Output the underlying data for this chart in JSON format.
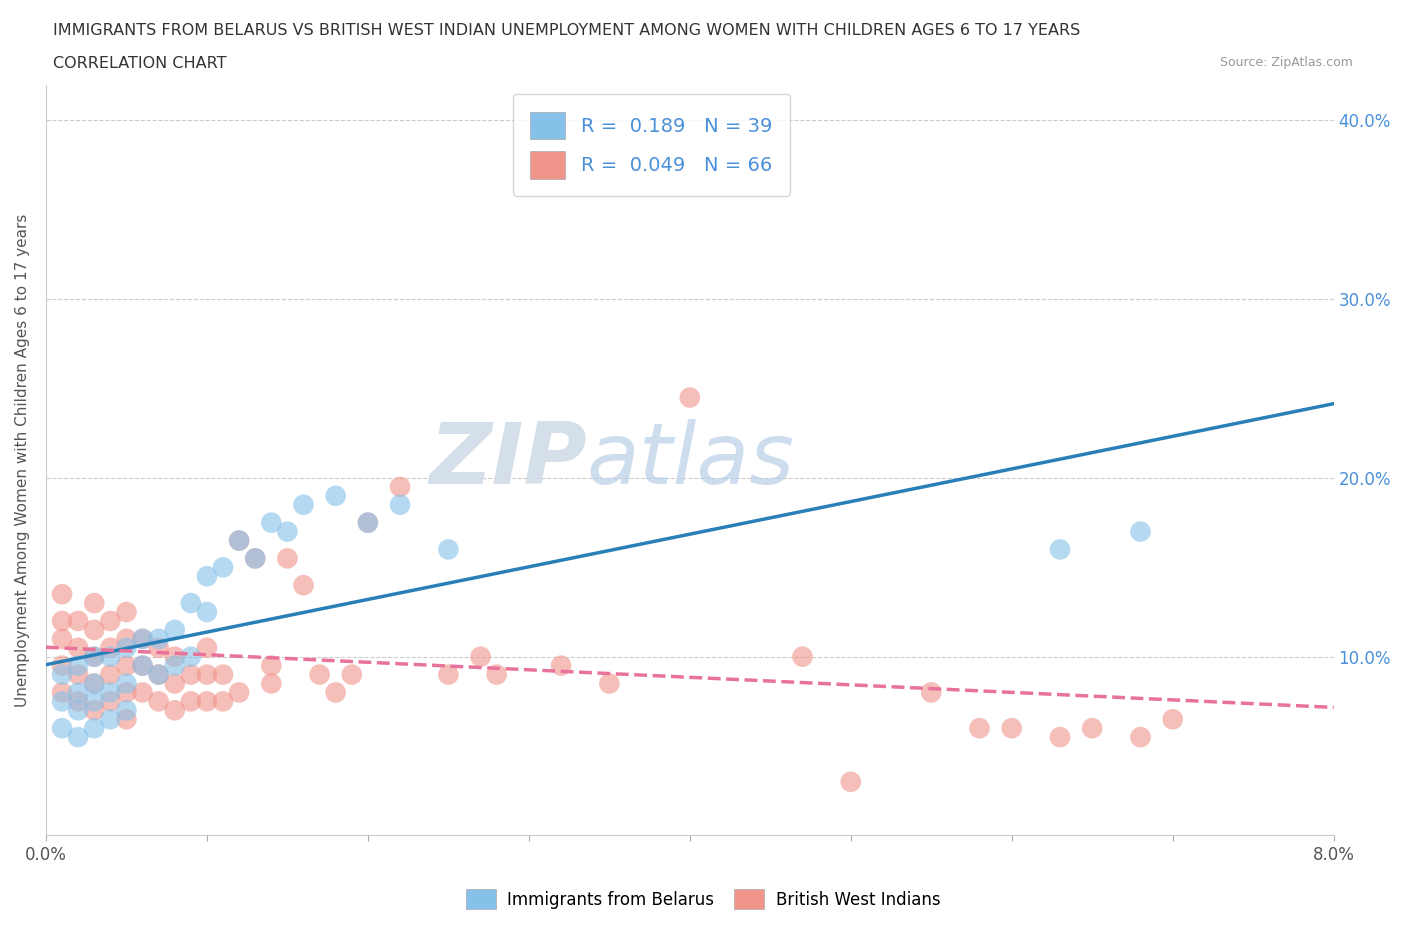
{
  "title_line1": "IMMIGRANTS FROM BELARUS VS BRITISH WEST INDIAN UNEMPLOYMENT AMONG WOMEN WITH CHILDREN AGES 6 TO 17 YEARS",
  "title_line2": "CORRELATION CHART",
  "source_text": "Source: ZipAtlas.com",
  "ylabel": "Unemployment Among Women with Children Ages 6 to 17 years",
  "xlim": [
    0.0,
    0.08
  ],
  "ylim": [
    0.0,
    0.42
  ],
  "x_ticks": [
    0.0,
    0.01,
    0.02,
    0.03,
    0.04,
    0.05,
    0.06,
    0.07,
    0.08
  ],
  "x_tick_labels": [
    "0.0%",
    "",
    "",
    "",
    "",
    "",
    "",
    "",
    "8.0%"
  ],
  "y_ticks": [
    0.0,
    0.1,
    0.2,
    0.3,
    0.4
  ],
  "y_tick_labels": [
    "",
    "10.0%",
    "20.0%",
    "30.0%",
    "40.0%"
  ],
  "blue_color": "#85c1e9",
  "pink_color": "#f1948a",
  "blue_line_color": "#2980b9",
  "pink_line_color": "#e8739a",
  "watermark_zip": "ZIP",
  "watermark_atlas": "atlas",
  "R_blue": 0.189,
  "N_blue": 39,
  "R_pink": 0.049,
  "N_pink": 66,
  "blue_scatter_x": [
    0.001,
    0.001,
    0.001,
    0.002,
    0.002,
    0.002,
    0.002,
    0.003,
    0.003,
    0.003,
    0.003,
    0.004,
    0.004,
    0.004,
    0.005,
    0.005,
    0.005,
    0.006,
    0.006,
    0.007,
    0.007,
    0.008,
    0.008,
    0.009,
    0.009,
    0.01,
    0.01,
    0.011,
    0.012,
    0.013,
    0.014,
    0.015,
    0.016,
    0.018,
    0.02,
    0.022,
    0.025,
    0.063,
    0.068
  ],
  "blue_scatter_y": [
    0.06,
    0.075,
    0.09,
    0.055,
    0.07,
    0.08,
    0.095,
    0.06,
    0.075,
    0.085,
    0.1,
    0.065,
    0.08,
    0.1,
    0.07,
    0.085,
    0.105,
    0.095,
    0.11,
    0.09,
    0.11,
    0.095,
    0.115,
    0.1,
    0.13,
    0.125,
    0.145,
    0.15,
    0.165,
    0.155,
    0.175,
    0.17,
    0.185,
    0.19,
    0.175,
    0.185,
    0.16,
    0.16,
    0.17
  ],
  "pink_scatter_x": [
    0.001,
    0.001,
    0.001,
    0.001,
    0.001,
    0.002,
    0.002,
    0.002,
    0.002,
    0.003,
    0.003,
    0.003,
    0.003,
    0.003,
    0.004,
    0.004,
    0.004,
    0.004,
    0.005,
    0.005,
    0.005,
    0.005,
    0.005,
    0.006,
    0.006,
    0.006,
    0.007,
    0.007,
    0.007,
    0.008,
    0.008,
    0.008,
    0.009,
    0.009,
    0.01,
    0.01,
    0.01,
    0.011,
    0.011,
    0.012,
    0.012,
    0.013,
    0.014,
    0.014,
    0.015,
    0.016,
    0.017,
    0.018,
    0.019,
    0.02,
    0.022,
    0.025,
    0.027,
    0.028,
    0.032,
    0.035,
    0.04,
    0.047,
    0.05,
    0.055,
    0.058,
    0.06,
    0.063,
    0.065,
    0.068,
    0.07
  ],
  "pink_scatter_y": [
    0.08,
    0.095,
    0.11,
    0.12,
    0.135,
    0.075,
    0.09,
    0.105,
    0.12,
    0.07,
    0.085,
    0.1,
    0.115,
    0.13,
    0.075,
    0.09,
    0.105,
    0.12,
    0.065,
    0.08,
    0.095,
    0.11,
    0.125,
    0.08,
    0.095,
    0.11,
    0.075,
    0.09,
    0.105,
    0.07,
    0.085,
    0.1,
    0.075,
    0.09,
    0.075,
    0.09,
    0.105,
    0.075,
    0.09,
    0.08,
    0.165,
    0.155,
    0.085,
    0.095,
    0.155,
    0.14,
    0.09,
    0.08,
    0.09,
    0.175,
    0.195,
    0.09,
    0.1,
    0.09,
    0.095,
    0.085,
    0.245,
    0.1,
    0.03,
    0.08,
    0.06,
    0.06,
    0.055,
    0.06,
    0.055,
    0.065
  ]
}
